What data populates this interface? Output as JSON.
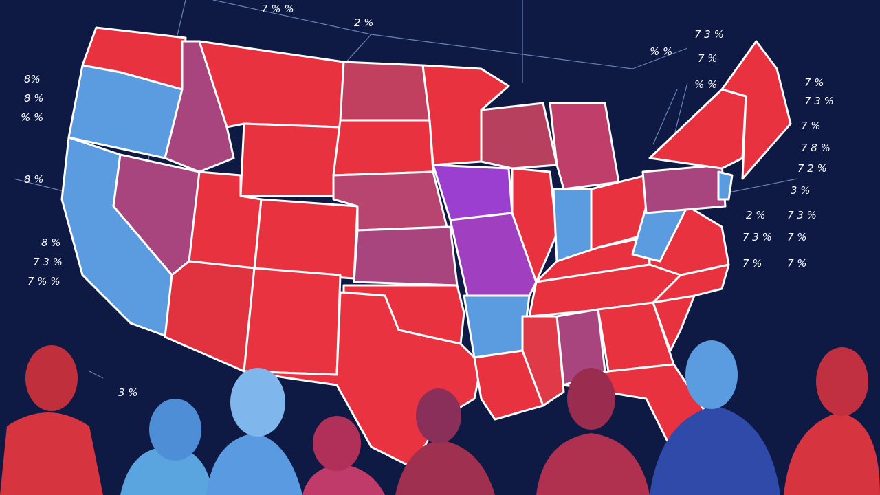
{
  "annotations": {
    "left": [
      "8%",
      "8 %",
      "% %",
      "8 %",
      "8 %",
      "7 3 %",
      "7 % %",
      "3 %"
    ],
    "top": [
      "7 % %",
      "2 %",
      "% %",
      "7 3 %",
      "7 %",
      "% %"
    ],
    "right": [
      "7 3 %",
      "7 %",
      "7 8 %",
      "7 2 %",
      "7 3 %",
      "3 %",
      "2 %",
      "7 3 %",
      "7 %",
      "7 %",
      "7 %",
      "7 %"
    ]
  }
}
